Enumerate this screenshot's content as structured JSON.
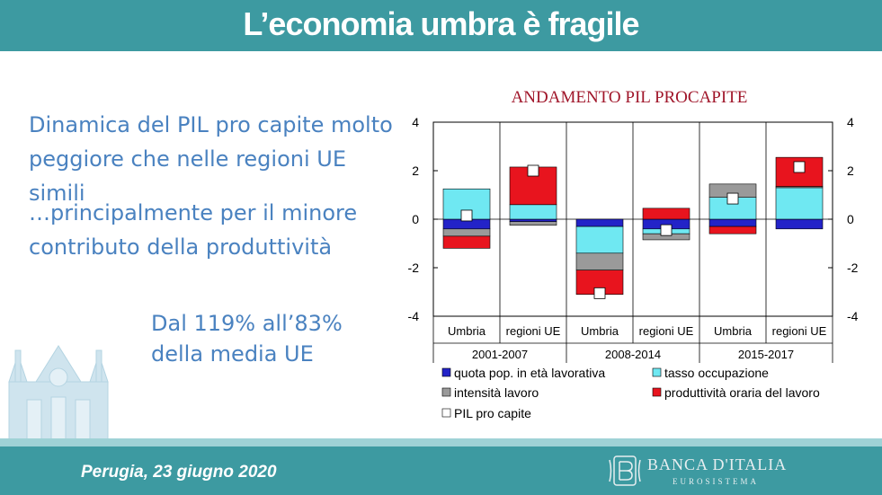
{
  "slide": {
    "title": "L’economia umbra è fragile",
    "bullet1": "Dinamica del PIL pro capite molto peggiore che nelle regioni UE simili",
    "bullet2": "…principalmente per il minore contributo della produttività",
    "bullet3_line1": "Dal 119% all’83%",
    "bullet3_line2": "della media UE",
    "footer": "Perugia, 23 giugno 2020",
    "logo_name": "BANCA D'ITALIA",
    "logo_sub": "EUROSISTEMA"
  },
  "colors": {
    "header": "#3d9aa1",
    "bullet_text": "#4a82c0",
    "chart_title": "#a0162a"
  },
  "chart_data": {
    "type": "bar",
    "stacked": true,
    "title": "ANDAMENTO PIL PROCAPITE",
    "categories": [
      "Umbria",
      "regioni UE",
      "Umbria",
      "regioni UE",
      "Umbria",
      "regioni UE"
    ],
    "groups": [
      {
        "label": "2001-2007",
        "span": 2
      },
      {
        "label": "2008-2014",
        "span": 2
      },
      {
        "label": "2015-2017",
        "span": 2
      }
    ],
    "ylim": [
      -4,
      4
    ],
    "yticks": [
      "4",
      "2",
      "0",
      "-2",
      "-4"
    ],
    "grid": false,
    "legend_position": "bottom",
    "series": [
      {
        "name": "quota pop. in età lavorativa",
        "color": "#2323c8",
        "values": [
          -0.4,
          -0.1,
          -0.3,
          -0.4,
          -0.3,
          -0.4
        ]
      },
      {
        "name": "tasso occupazione",
        "color": "#6fe8f2",
        "values": [
          1.25,
          0.6,
          -1.1,
          -0.2,
          0.9,
          1.3
        ]
      },
      {
        "name": "intensità lavoro",
        "color": "#9a9a9a",
        "values": [
          -0.3,
          -0.15,
          -0.7,
          -0.25,
          0.55,
          0.05
        ]
      },
      {
        "name": "produttività oraria del lavoro",
        "color": "#e8141e",
        "values": [
          -0.5,
          1.55,
          -1.0,
          0.45,
          -0.3,
          1.2
        ]
      }
    ],
    "total": {
      "name": "PIL pro capite",
      "values": [
        0.15,
        2.0,
        -3.05,
        -0.45,
        0.85,
        2.15
      ]
    }
  }
}
